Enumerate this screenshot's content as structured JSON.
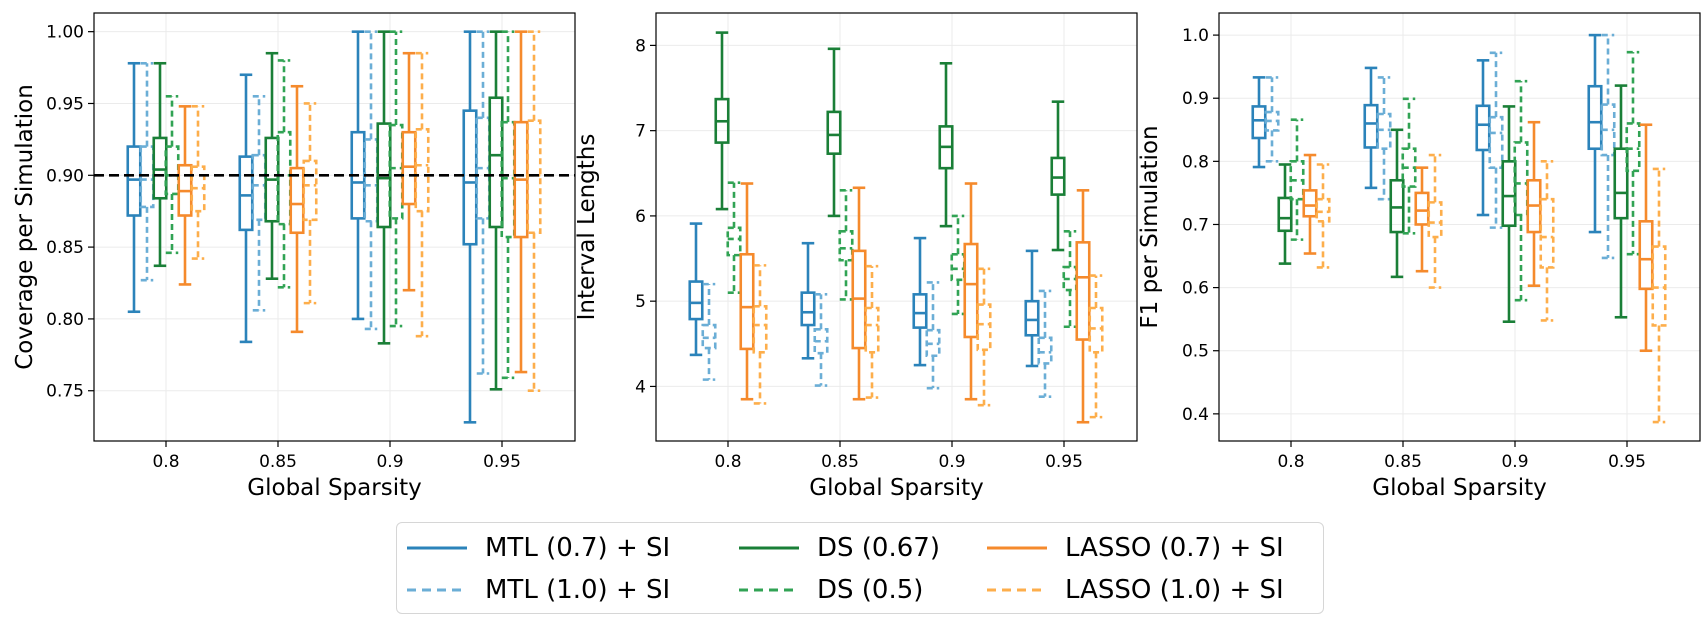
{
  "colors": {
    "mtl07": "#2b83ba",
    "mtl10": "#6baed6",
    "ds067": "#1a7f37",
    "ds05": "#31a354",
    "lasso07": "#f58a2c",
    "lasso10": "#fdae4b",
    "reference": "#000000"
  },
  "legend": [
    {
      "key": "mtl07",
      "label": "MTL (0.7) + SI",
      "style": "solid"
    },
    {
      "key": "ds067",
      "label": "DS (0.67)",
      "style": "solid"
    },
    {
      "key": "lasso07",
      "label": "LASSO (0.7) + SI",
      "style": "solid"
    },
    {
      "key": "mtl10",
      "label": "MTL (1.0) + SI",
      "style": "dashed"
    },
    {
      "key": "ds05",
      "label": "DS (0.5)",
      "style": "dashed"
    },
    {
      "key": "lasso10",
      "label": "LASSO (1.0) + SI",
      "style": "dashed"
    }
  ],
  "chart_data": [
    {
      "type": "boxplot",
      "title": "",
      "xlabel": "Global Sparsity",
      "ylabel": "Coverage per Simulation",
      "categories": [
        "0.8",
        "0.85",
        "0.9",
        "0.95"
      ],
      "ylim": [
        0.715,
        1.013
      ],
      "yticks": [
        0.75,
        0.8,
        0.85,
        0.9,
        0.95,
        1.0
      ],
      "ytick_labels": [
        "0.75",
        "0.80",
        "0.85",
        "0.90",
        "0.95",
        "1.00"
      ],
      "reference_line": 0.9,
      "grid": true,
      "series": [
        {
          "name": "MTL (0.7) + SI",
          "key": "mtl07",
          "style": "solid",
          "boxes": [
            [
              0.805,
              0.872,
              0.897,
              0.92,
              0.978
            ],
            [
              0.784,
              0.862,
              0.886,
              0.913,
              0.97
            ],
            [
              0.8,
              0.87,
              0.895,
              0.93,
              1.0
            ],
            [
              0.728,
              0.852,
              0.895,
              0.945,
              1.0
            ]
          ]
        },
        {
          "name": "MTL (1.0) + SI",
          "key": "mtl10",
          "style": "dashed",
          "boxes": [
            [
              0.827,
              0.878,
              0.897,
              0.92,
              0.978
            ],
            [
              0.806,
              0.869,
              0.893,
              0.914,
              0.955
            ],
            [
              0.793,
              0.868,
              0.893,
              0.925,
              1.0
            ],
            [
              0.762,
              0.87,
              0.905,
              0.94,
              1.0
            ]
          ]
        },
        {
          "name": "DS (0.67)",
          "key": "ds067",
          "style": "solid",
          "boxes": [
            [
              0.837,
              0.884,
              0.904,
              0.926,
              0.978
            ],
            [
              0.828,
              0.868,
              0.897,
              0.926,
              0.985
            ],
            [
              0.783,
              0.864,
              0.898,
              0.936,
              1.0
            ],
            [
              0.751,
              0.864,
              0.914,
              0.954,
              1.0
            ]
          ]
        },
        {
          "name": "DS (0.5)",
          "key": "ds05",
          "style": "dashed",
          "boxes": [
            [
              0.846,
              0.887,
              0.9,
              0.92,
              0.955
            ],
            [
              0.822,
              0.866,
              0.9,
              0.93,
              0.98
            ],
            [
              0.795,
              0.87,
              0.905,
              0.935,
              1.0
            ],
            [
              0.759,
              0.857,
              0.898,
              0.937,
              1.0
            ]
          ]
        },
        {
          "name": "LASSO (0.7) + SI",
          "key": "lasso07",
          "style": "solid",
          "boxes": [
            [
              0.824,
              0.872,
              0.889,
              0.907,
              0.948
            ],
            [
              0.791,
              0.86,
              0.88,
              0.905,
              0.962
            ],
            [
              0.82,
              0.88,
              0.906,
              0.93,
              0.985
            ],
            [
              0.763,
              0.857,
              0.897,
              0.937,
              1.0
            ]
          ]
        },
        {
          "name": "LASSO (1.0) + SI",
          "key": "lasso10",
          "style": "dashed",
          "boxes": [
            [
              0.842,
              0.875,
              0.891,
              0.906,
              0.948
            ],
            [
              0.811,
              0.869,
              0.893,
              0.91,
              0.95
            ],
            [
              0.788,
              0.875,
              0.907,
              0.932,
              0.985
            ],
            [
              0.75,
              0.86,
              0.9,
              0.938,
              1.0
            ]
          ]
        }
      ]
    },
    {
      "type": "boxplot",
      "title": "",
      "xlabel": "Global Sparsity",
      "ylabel": "Interval Lengths",
      "categories": [
        "0.8",
        "0.85",
        "0.9",
        "0.95"
      ],
      "ylim": [
        3.36,
        8.38
      ],
      "yticks": [
        4,
        5,
        6,
        7,
        8
      ],
      "ytick_labels": [
        "4",
        "5",
        "6",
        "7",
        "8"
      ],
      "reference_line": null,
      "grid": true,
      "series": [
        {
          "name": "MTL (0.7) + SI",
          "key": "mtl07",
          "style": "solid",
          "boxes": [
            [
              4.37,
              4.79,
              4.98,
              5.23,
              5.91
            ],
            [
              4.33,
              4.72,
              4.87,
              5.1,
              5.68
            ],
            [
              4.25,
              4.69,
              4.86,
              5.08,
              5.74
            ],
            [
              4.24,
              4.6,
              4.78,
              5.0,
              5.59
            ]
          ]
        },
        {
          "name": "MTL (1.0) + SI",
          "key": "mtl10",
          "style": "dashed",
          "boxes": [
            [
              4.08,
              4.45,
              4.57,
              4.72,
              5.2
            ],
            [
              4.01,
              4.39,
              4.53,
              4.67,
              5.08
            ],
            [
              3.98,
              4.36,
              4.5,
              4.66,
              5.22
            ],
            [
              3.88,
              4.27,
              4.4,
              4.57,
              5.12
            ]
          ]
        },
        {
          "name": "DS (0.67)",
          "key": "ds067",
          "style": "solid",
          "boxes": [
            [
              6.08,
              6.86,
              7.11,
              7.37,
              8.15
            ],
            [
              6.0,
              6.73,
              6.95,
              7.22,
              7.96
            ],
            [
              5.88,
              6.56,
              6.81,
              7.05,
              7.79
            ],
            [
              5.6,
              6.25,
              6.45,
              6.68,
              7.34
            ]
          ]
        },
        {
          "name": "DS (0.5)",
          "key": "ds05",
          "style": "dashed",
          "boxes": [
            [
              5.1,
              5.54,
              5.73,
              5.86,
              6.39
            ],
            [
              5.02,
              5.48,
              5.62,
              5.82,
              6.3
            ],
            [
              4.85,
              5.25,
              5.38,
              5.55,
              6.0
            ],
            [
              4.7,
              5.13,
              5.26,
              5.4,
              5.82
            ]
          ]
        },
        {
          "name": "LASSO (0.7) + SI",
          "key": "lasso07",
          "style": "solid",
          "boxes": [
            [
              3.85,
              4.44,
              4.93,
              5.55,
              6.38
            ],
            [
              3.85,
              4.45,
              5.03,
              5.59,
              6.33
            ],
            [
              3.85,
              4.58,
              5.2,
              5.67,
              6.38
            ],
            [
              3.58,
              4.55,
              5.28,
              5.69,
              6.3
            ]
          ]
        },
        {
          "name": "LASSO (1.0) + SI",
          "key": "lasso10",
          "style": "dashed",
          "boxes": [
            [
              3.8,
              4.4,
              4.72,
              4.94,
              5.42
            ],
            [
              3.87,
              4.4,
              4.72,
              4.92,
              5.41
            ],
            [
              3.78,
              4.43,
              4.73,
              4.96,
              5.38
            ],
            [
              3.64,
              4.4,
              4.68,
              4.92,
              5.3
            ]
          ]
        }
      ]
    },
    {
      "type": "boxplot",
      "title": "",
      "xlabel": "Global Sparsity",
      "ylabel": "F1 per Simulation",
      "categories": [
        "0.8",
        "0.85",
        "0.9",
        "0.95"
      ],
      "ylim": [
        0.357,
        1.035
      ],
      "yticks": [
        0.4,
        0.5,
        0.6,
        0.7,
        0.8,
        0.9,
        1.0
      ],
      "ytick_labels": [
        "0.4",
        "0.5",
        "0.6",
        "0.7",
        "0.8",
        "0.9",
        "1.0"
      ],
      "reference_line": null,
      "grid": true,
      "series": [
        {
          "name": "MTL (0.7) + SI",
          "key": "mtl07",
          "style": "solid",
          "boxes": [
            [
              0.791,
              0.837,
              0.865,
              0.887,
              0.933
            ],
            [
              0.758,
              0.822,
              0.86,
              0.889,
              0.948
            ],
            [
              0.715,
              0.818,
              0.858,
              0.888,
              0.96
            ],
            [
              0.688,
              0.82,
              0.862,
              0.919,
              1.0
            ]
          ]
        },
        {
          "name": "MTL (1.0) + SI",
          "key": "mtl10",
          "style": "dashed",
          "boxes": [
            [
              0.8,
              0.849,
              0.864,
              0.878,
              0.933
            ],
            [
              0.74,
              0.82,
              0.85,
              0.875,
              0.933
            ],
            [
              0.695,
              0.79,
              0.845,
              0.87,
              0.972
            ],
            [
              0.647,
              0.81,
              0.85,
              0.89,
              1.0
            ]
          ]
        },
        {
          "name": "DS (0.67)",
          "key": "ds067",
          "style": "solid",
          "boxes": [
            [
              0.638,
              0.69,
              0.71,
              0.742,
              0.795
            ],
            [
              0.617,
              0.688,
              0.727,
              0.77,
              0.85
            ],
            [
              0.546,
              0.698,
              0.745,
              0.8,
              0.887
            ],
            [
              0.553,
              0.71,
              0.75,
              0.82,
              0.92
            ]
          ]
        },
        {
          "name": "DS (0.5)",
          "key": "ds05",
          "style": "dashed",
          "boxes": [
            [
              0.676,
              0.74,
              0.77,
              0.8,
              0.866
            ],
            [
              0.686,
              0.76,
              0.79,
              0.82,
              0.899
            ],
            [
              0.58,
              0.715,
              0.765,
              0.83,
              0.927
            ],
            [
              0.653,
              0.785,
              0.82,
              0.86,
              0.973
            ]
          ]
        },
        {
          "name": "LASSO (0.7) + SI",
          "key": "lasso07",
          "style": "solid",
          "boxes": [
            [
              0.654,
              0.713,
              0.73,
              0.754,
              0.81
            ],
            [
              0.626,
              0.7,
              0.722,
              0.75,
              0.79
            ],
            [
              0.603,
              0.688,
              0.73,
              0.77,
              0.862
            ],
            [
              0.5,
              0.598,
              0.645,
              0.705,
              0.858
            ]
          ]
        },
        {
          "name": "LASSO (1.0) + SI",
          "key": "lasso10",
          "style": "dashed",
          "boxes": [
            [
              0.632,
              0.705,
              0.72,
              0.74,
              0.795
            ],
            [
              0.6,
              0.68,
              0.703,
              0.735,
              0.81
            ],
            [
              0.548,
              0.632,
              0.68,
              0.74,
              0.8
            ],
            [
              0.387,
              0.54,
              0.6,
              0.665,
              0.788
            ]
          ]
        }
      ]
    }
  ]
}
